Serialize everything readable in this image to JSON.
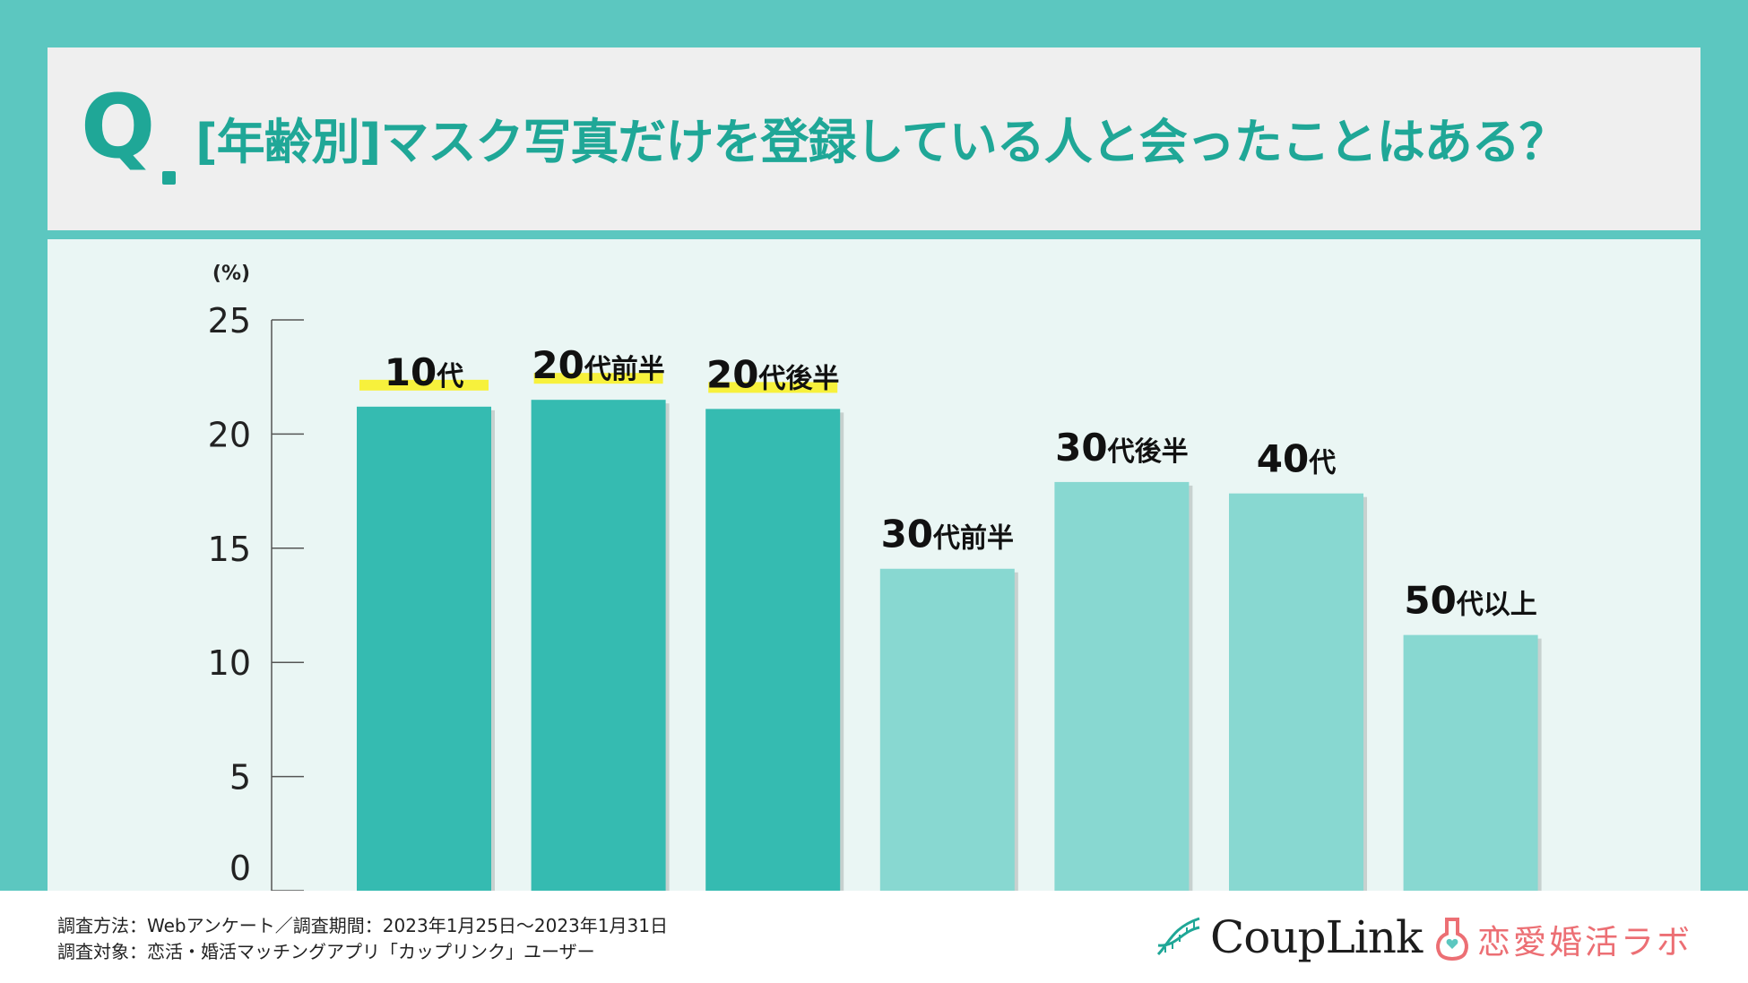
{
  "title": {
    "q_mark": "Q",
    "text": "[年齢別]マスク写真だけを登録している人と会ったことはある？"
  },
  "colors": {
    "background": "#5cc7c0",
    "accent": "#1fa797",
    "bar_dark": "#35bbb1",
    "bar_light": "#88d8d1",
    "highlight": "#f7f13c",
    "logo_pink": "#ec6f74"
  },
  "chart_data": {
    "type": "bar",
    "unit_label": "(%)",
    "categories": [
      "10代",
      "20代前半",
      "20代後半",
      "30代前半",
      "30代後半",
      "40代",
      "50代以上"
    ],
    "values": [
      21.2,
      21.5,
      21.1,
      14.1,
      17.9,
      17.4,
      11.2
    ],
    "highlighted": [
      true,
      true,
      true,
      false,
      false,
      false,
      false
    ],
    "ylim": [
      0,
      25
    ],
    "yticks": [
      0,
      5,
      10,
      15,
      20,
      25
    ]
  },
  "footer": {
    "method_line": "調査方法：Webアンケート／調査期間：2023年1月25日〜2023年1月31日",
    "target_line": "調査対象：恋活・婚活マッチングアプリ「カップリンク」ユーザー"
  },
  "logos": {
    "couplink": "CoupLink",
    "lab": "恋愛婚活ラボ"
  }
}
